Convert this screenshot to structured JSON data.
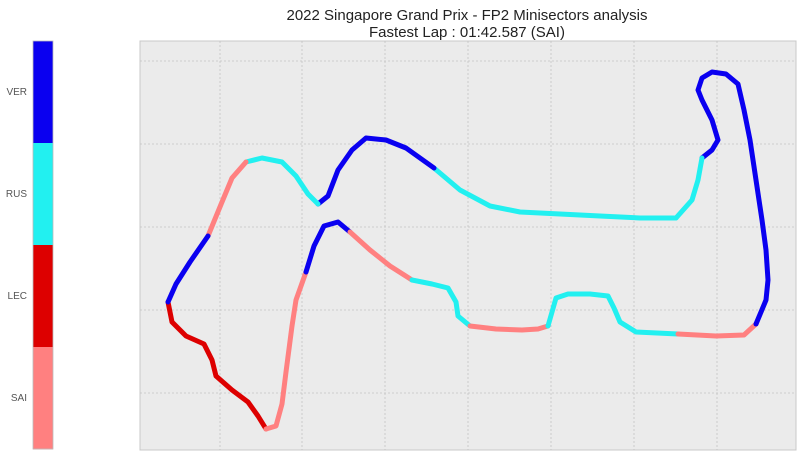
{
  "chart_data": {
    "type": "line",
    "title": "2022 Singapore Grand Prix - FP2 Minisectors analysis",
    "subtitle": "Fastest Lap : 01:42.587 (SAI)",
    "xlabel": "",
    "ylabel": "",
    "grid": true,
    "legend": {
      "type": "colorbar",
      "placement": "left",
      "entries": [
        {
          "label": "VER",
          "color": "#0a00f0"
        },
        {
          "label": "RUS",
          "color": "#22f0f0"
        },
        {
          "label": "LEC",
          "color": "#dd0000"
        },
        {
          "label": "SAI",
          "color": "#ff8080"
        }
      ]
    },
    "sectors": [
      {
        "driver": "LEC",
        "points": [
          [
            168,
            302
          ],
          [
            172,
            322
          ],
          [
            186,
            336
          ],
          [
            204,
            344
          ],
          [
            212,
            360
          ],
          [
            216,
            376
          ],
          [
            232,
            390
          ],
          [
            248,
            402
          ],
          [
            258,
            416
          ],
          [
            266,
            429
          ]
        ]
      },
      {
        "driver": "SAI",
        "points": [
          [
            266,
            429
          ],
          [
            276,
            426
          ],
          [
            282,
            404
          ],
          [
            286,
            372
          ],
          [
            292,
            326
          ],
          [
            296,
            300
          ],
          [
            306,
            272
          ]
        ]
      },
      {
        "driver": "VER",
        "points": [
          [
            306,
            272
          ],
          [
            314,
            246
          ],
          [
            324,
            226
          ],
          [
            338,
            222
          ],
          [
            350,
            232
          ]
        ]
      },
      {
        "driver": "SAI",
        "points": [
          [
            350,
            232
          ],
          [
            370,
            250
          ],
          [
            390,
            266
          ],
          [
            412,
            280
          ]
        ]
      },
      {
        "driver": "RUS",
        "points": [
          [
            412,
            280
          ],
          [
            432,
            284
          ],
          [
            448,
            288
          ],
          [
            456,
            302
          ],
          [
            458,
            316
          ],
          [
            470,
            326
          ]
        ]
      },
      {
        "driver": "SAI",
        "points": [
          [
            470,
            326
          ],
          [
            496,
            329
          ],
          [
            522,
            330
          ],
          [
            538,
            329
          ],
          [
            548,
            326
          ]
        ]
      },
      {
        "driver": "RUS",
        "points": [
          [
            548,
            326
          ],
          [
            552,
            312
          ],
          [
            556,
            298
          ],
          [
            568,
            294
          ],
          [
            590,
            294
          ],
          [
            608,
            296
          ],
          [
            614,
            308
          ],
          [
            620,
            322
          ],
          [
            636,
            332
          ],
          [
            678,
            334
          ]
        ]
      },
      {
        "driver": "SAI",
        "points": [
          [
            678,
            334
          ],
          [
            716,
            336
          ],
          [
            744,
            335
          ],
          [
            756,
            324
          ]
        ]
      },
      {
        "driver": "VER",
        "points": [
          [
            756,
            324
          ],
          [
            766,
            300
          ],
          [
            768,
            280
          ],
          [
            766,
            250
          ],
          [
            762,
            220
          ],
          [
            756,
            180
          ],
          [
            750,
            140
          ],
          [
            744,
            110
          ],
          [
            738,
            84
          ],
          [
            726,
            74
          ],
          [
            712,
            72
          ],
          [
            702,
            78
          ],
          [
            698,
            90
          ],
          [
            702,
            100
          ],
          [
            712,
            120
          ],
          [
            718,
            140
          ],
          [
            712,
            150
          ],
          [
            702,
            158
          ]
        ]
      },
      {
        "driver": "RUS",
        "points": [
          [
            702,
            158
          ],
          [
            698,
            180
          ],
          [
            692,
            200
          ],
          [
            676,
            218
          ]
        ]
      },
      {
        "driver": "RUS",
        "points": [
          [
            676,
            218
          ],
          [
            640,
            218
          ],
          [
            600,
            216
          ],
          [
            560,
            214
          ],
          [
            520,
            212
          ],
          [
            490,
            206
          ],
          [
            460,
            190
          ],
          [
            434,
            168
          ]
        ]
      },
      {
        "driver": "VER",
        "points": [
          [
            434,
            168
          ],
          [
            406,
            148
          ],
          [
            386,
            140
          ],
          [
            366,
            138
          ],
          [
            352,
            150
          ],
          [
            338,
            170
          ],
          [
            328,
            196
          ],
          [
            318,
            204
          ]
        ]
      },
      {
        "driver": "RUS",
        "points": [
          [
            318,
            204
          ],
          [
            308,
            194
          ],
          [
            296,
            176
          ],
          [
            282,
            162
          ],
          [
            262,
            158
          ],
          [
            246,
            162
          ]
        ]
      },
      {
        "driver": "SAI",
        "points": [
          [
            246,
            162
          ],
          [
            232,
            178
          ],
          [
            222,
            202
          ],
          [
            208,
            236
          ]
        ]
      },
      {
        "driver": "VER",
        "points": [
          [
            208,
            236
          ],
          [
            190,
            262
          ],
          [
            176,
            284
          ],
          [
            168,
            302
          ]
        ]
      }
    ]
  }
}
